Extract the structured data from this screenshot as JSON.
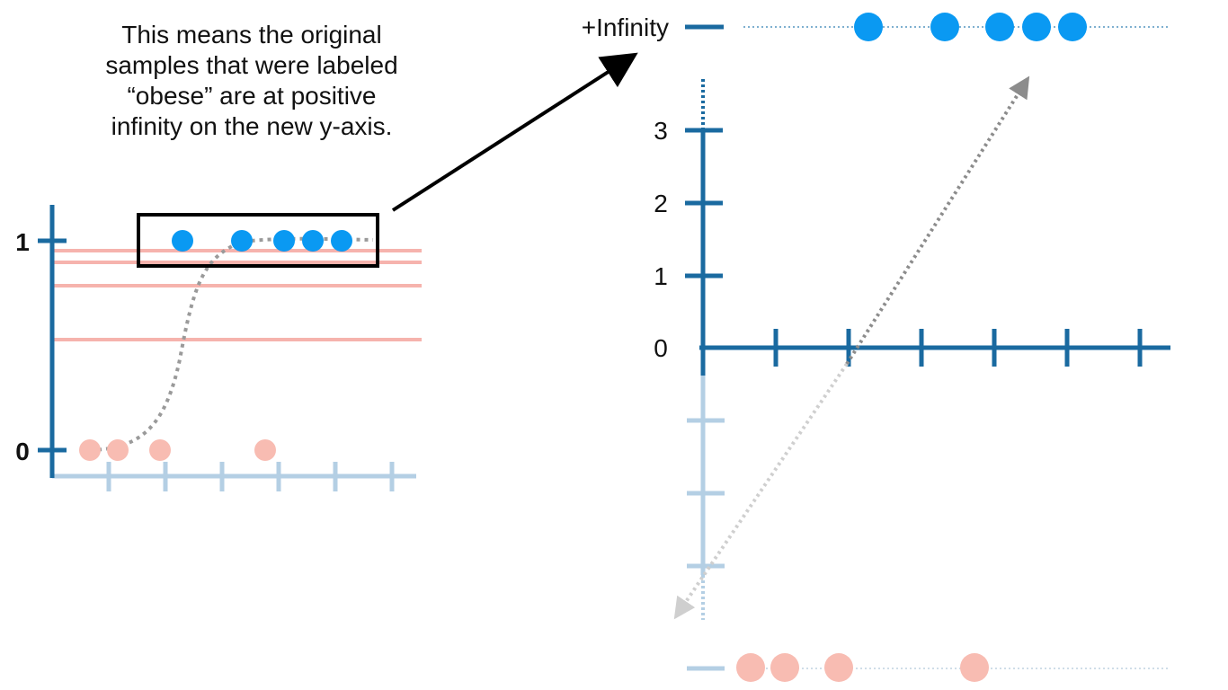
{
  "callout": {
    "lines": [
      "This means the original",
      "samples that were labeled",
      "“obese” are at positive",
      "infinity on the new y-axis."
    ]
  },
  "left_plot": {
    "y_tick_labels": [
      "1",
      "0"
    ],
    "obese_count": 5,
    "not_obese_count": 4
  },
  "right_plot": {
    "infinity_label": "+Infinity",
    "y_tick_labels": [
      "3",
      "2",
      "1",
      "0"
    ]
  },
  "colors": {
    "axis_dark": "#1a6aa0",
    "axis_light": "#b4cfe4",
    "obese_dot": "#0a99f2",
    "not_obese_dot": "#f8bcb2",
    "threshold_line": "#f6b3ad",
    "dotted_curve": "#9a9a9a",
    "arrow": "#000000"
  }
}
